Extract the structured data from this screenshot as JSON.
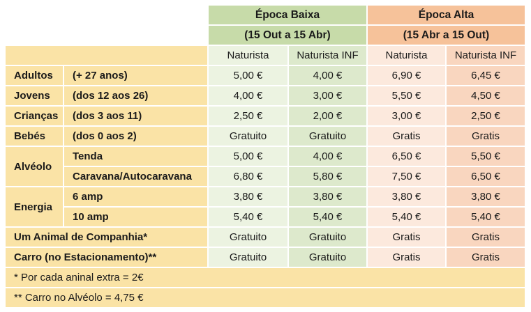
{
  "header": {
    "low_season": {
      "title": "Época Baixa",
      "dates": "(15 Out a 15 Abr)"
    },
    "high_season": {
      "title": "Época Alta",
      "dates": "(15 Abr a 15 Out)"
    },
    "columns": [
      "Naturista",
      "Naturista INF",
      "Naturista",
      "Naturista INF"
    ]
  },
  "rows": [
    {
      "group": "Adultos",
      "sub": "(+ 27 anos)",
      "values": [
        "5,00 €",
        "4,00 €",
        "6,90 €",
        "6,45 €"
      ]
    },
    {
      "group": "Jovens",
      "sub": "(dos 12 aos 26)",
      "values": [
        "4,00 €",
        "3,00 €",
        "5,50 €",
        "4,50 €"
      ]
    },
    {
      "group": "Crianças",
      "sub": "(dos 3 aos 11)",
      "values": [
        "2,50 €",
        "2,00 €",
        "3,00 €",
        "2,50 €"
      ]
    },
    {
      "group": "Bebés",
      "sub": "(dos 0 aos 2)",
      "values": [
        "Gratuito",
        "Gratuito",
        "Gratis",
        "Gratis"
      ]
    },
    {
      "group": "Alvéolo",
      "sub": "Tenda",
      "values": [
        "5,00 €",
        "4,00 €",
        "6,50 €",
        "5,50 €"
      ]
    },
    {
      "group": "",
      "sub": "Caravana/Autocaravana",
      "values": [
        "6,80 €",
        "5,80 €",
        "7,50 €",
        "6,50 €"
      ]
    },
    {
      "group": "Energia",
      "sub": "6 amp",
      "values": [
        "3,80 €",
        "3,80 €",
        "3,80 €",
        "3,80 €"
      ]
    },
    {
      "group": "",
      "sub": "10 amp",
      "values": [
        "5,40 €",
        "5,40 €",
        "5,40 €",
        "5,40 €"
      ]
    },
    {
      "group": "Um Animal  de Companhia*",
      "sub": "",
      "values": [
        "Gratuito",
        "Gratuito",
        "Gratis",
        "Gratis"
      ]
    },
    {
      "group": "Carro (no Estacionamento)**",
      "sub": "",
      "values": [
        "Gratuito",
        "Gratuito",
        "Gratis",
        "Gratis"
      ]
    }
  ],
  "notes": [
    "* Por cada aninal extra = 2€",
    "** Carro no Alvéolo = 4,75 €"
  ]
}
